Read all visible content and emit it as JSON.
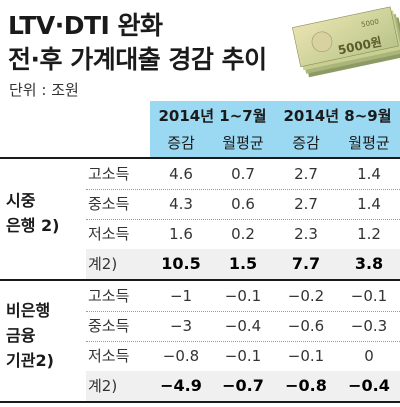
{
  "title_line1": "LTV·DTI 완화",
  "title_line2": "전·후 가계대출 경감 추이",
  "unit": "단위 : 조원",
  "money_label": "5000원",
  "money_label2": "5000",
  "periods": [
    "2014년 1~7월",
    "2014년 8~9월"
  ],
  "subheaders": [
    "증감",
    "월평균",
    "증감",
    "월평균"
  ],
  "groups": [
    {
      "category": "시중\n은행 2)",
      "rows": [
        {
          "label": "고소득",
          "values": [
            "4.6",
            "0.7",
            "2.7",
            "1.4"
          ]
        },
        {
          "label": "중소득",
          "values": [
            "4.3",
            "0.6",
            "2.7",
            "1.4"
          ]
        },
        {
          "label": "저소득",
          "values": [
            "1.6",
            "0.2",
            "2.3",
            "1.2"
          ]
        },
        {
          "label": "계2)",
          "values": [
            "10.5",
            "1.5",
            "7.7",
            "3.8"
          ]
        }
      ]
    },
    {
      "category": "비은행\n금융\n기관2)",
      "rows": [
        {
          "label": "고소득",
          "values": [
            "−1",
            "−0.1",
            "−0.2",
            "−0.1"
          ]
        },
        {
          "label": "중소득",
          "values": [
            "−3",
            "−0.4",
            "−0.6",
            "−0.3"
          ]
        },
        {
          "label": "저소득",
          "values": [
            "−0.8",
            "−0.1",
            "−0.1",
            "0"
          ]
        },
        {
          "label": "계2)",
          "values": [
            "−4.9",
            "−0.7",
            "−0.8",
            "−0.4"
          ]
        }
      ]
    }
  ]
}
